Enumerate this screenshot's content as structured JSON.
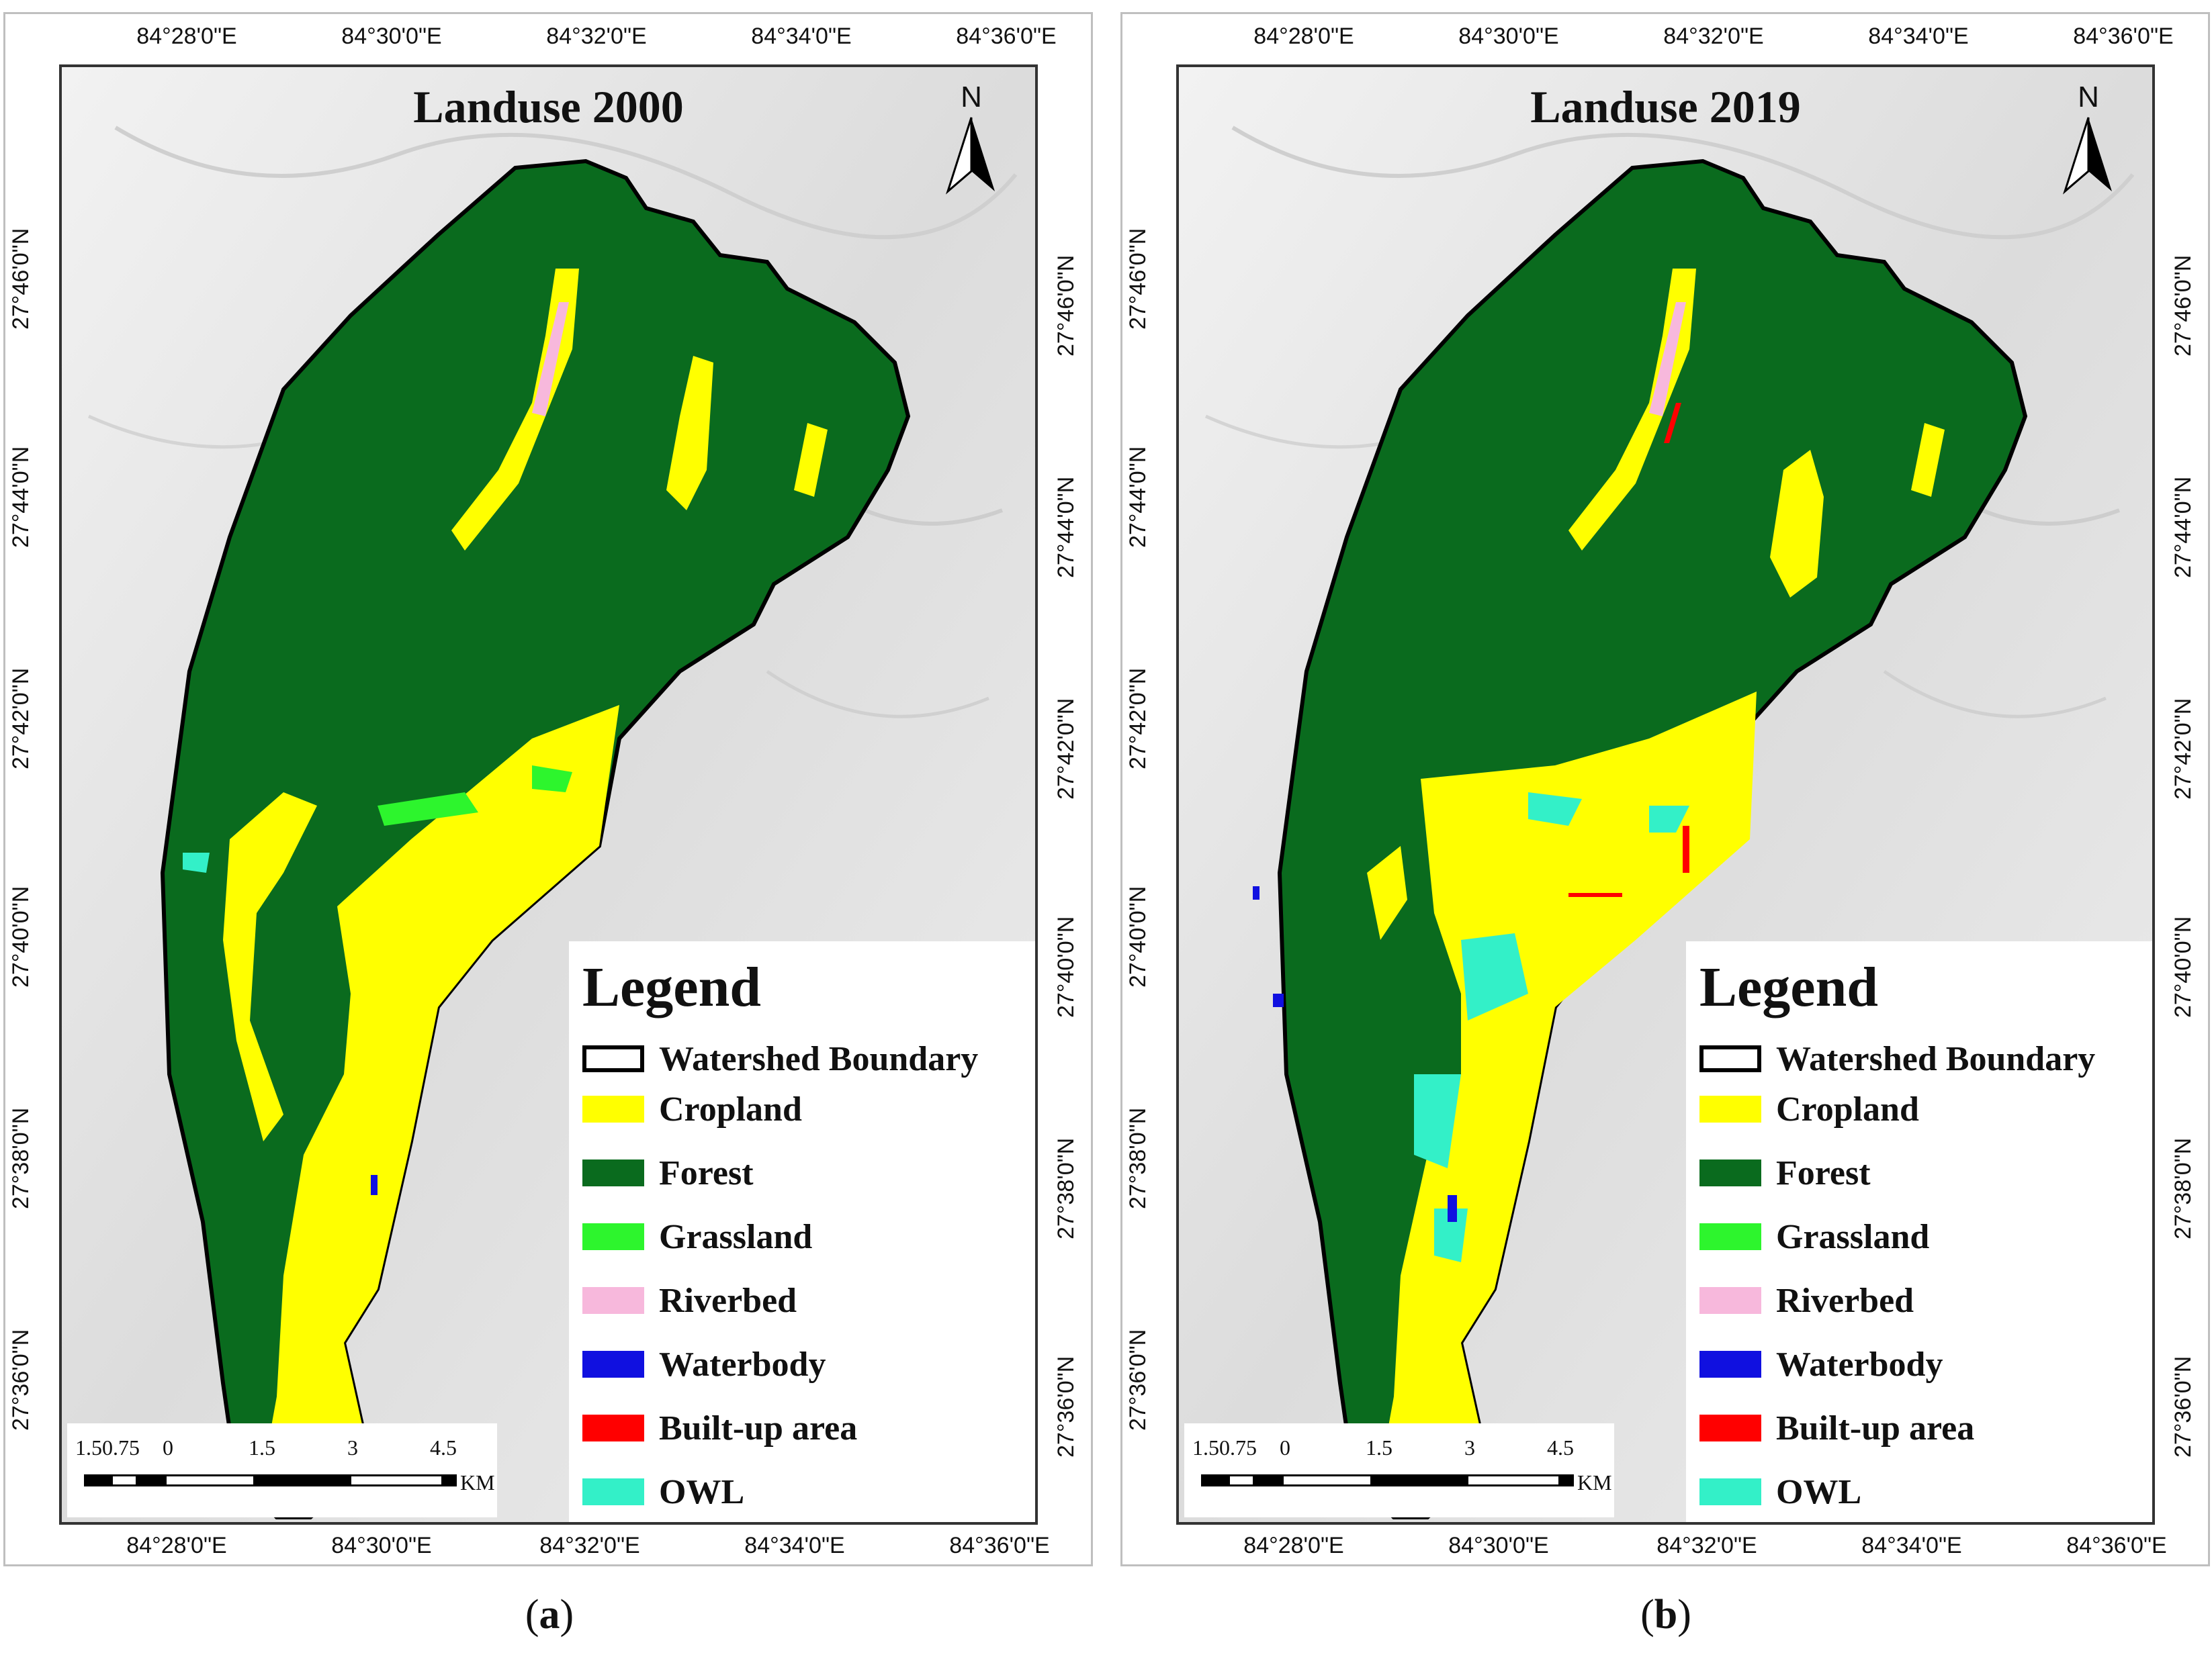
{
  "figure": {
    "panels": [
      {
        "id": "a",
        "title": "Landuse 2000",
        "caption_letter": "a",
        "top_ticks": [
          "84°28'0\"E",
          "84°30'0\"E",
          "84°32'0\"E",
          "84°34'0\"E",
          "84°36'0\"E"
        ],
        "bottom_ticks": [
          "84°28'0\"E",
          "84°30'0\"E",
          "84°32'0\"E",
          "84°34'0\"E",
          "84°36'0\"E"
        ],
        "left_ticks": [
          "27°46'0\"N",
          "27°44'0\"N",
          "27°42'0\"N",
          "27°40'0\"N",
          "27°38'0\"N",
          "27°36'0\"N"
        ],
        "right_ticks": [
          "27°46'0\"N",
          "27°44'0\"N",
          "27°42'0\"N",
          "27°40'0\"N",
          "27°38'0\"N",
          "27°36'0\"N"
        ]
      },
      {
        "id": "b",
        "title": "Landuse 2019",
        "caption_letter": "b",
        "top_ticks": [
          "84°28'0\"E",
          "84°30'0\"E",
          "84°32'0\"E",
          "84°34'0\"E",
          "84°36'0\"E"
        ],
        "bottom_ticks": [
          "84°28'0\"E",
          "84°30'0\"E",
          "84°32'0\"E",
          "84°34'0\"E",
          "84°36'0\"E"
        ],
        "left_ticks": [
          "27°46'0\"N",
          "27°44'0\"N",
          "27°42'0\"N",
          "27°40'0\"N",
          "27°38'0\"N",
          "27°36'0\"N"
        ],
        "right_ticks": [
          "27°46'0\"N",
          "27°44'0\"N",
          "27°42'0\"N",
          "27°40'0\"N",
          "27°38'0\"N",
          "27°36'0\"N"
        ]
      }
    ],
    "north_label": "N",
    "legend": {
      "title": "Legend",
      "items": [
        {
          "label": "Watershed Boundary",
          "color": "#ffffff",
          "outline": "#000000"
        },
        {
          "label": "Cropland",
          "color": "#ffff00"
        },
        {
          "label": "Forest",
          "color": "#0a6b1e"
        },
        {
          "label": "Grassland",
          "color": "#2df52d"
        },
        {
          "label": "Riverbed",
          "color": "#f7b8dc"
        },
        {
          "label": "Waterbody",
          "color": "#1010e0"
        },
        {
          "label": "Built-up area",
          "color": "#ff0000"
        },
        {
          "label": "OWL",
          "color": "#33f0c8"
        }
      ]
    },
    "scale_bar": {
      "labels": [
        "1.5",
        "0.75",
        "0",
        "1.5",
        "3",
        "4.5"
      ],
      "unit": "KM"
    },
    "colors": {
      "forest": "#0a6b1e",
      "cropland": "#ffff00",
      "grassland": "#2df52d",
      "riverbed": "#f7b8dc",
      "waterbody": "#1010e0",
      "builtup": "#ff0000",
      "owl": "#33f0c8",
      "hillshade": "#e6e6e6"
    }
  }
}
